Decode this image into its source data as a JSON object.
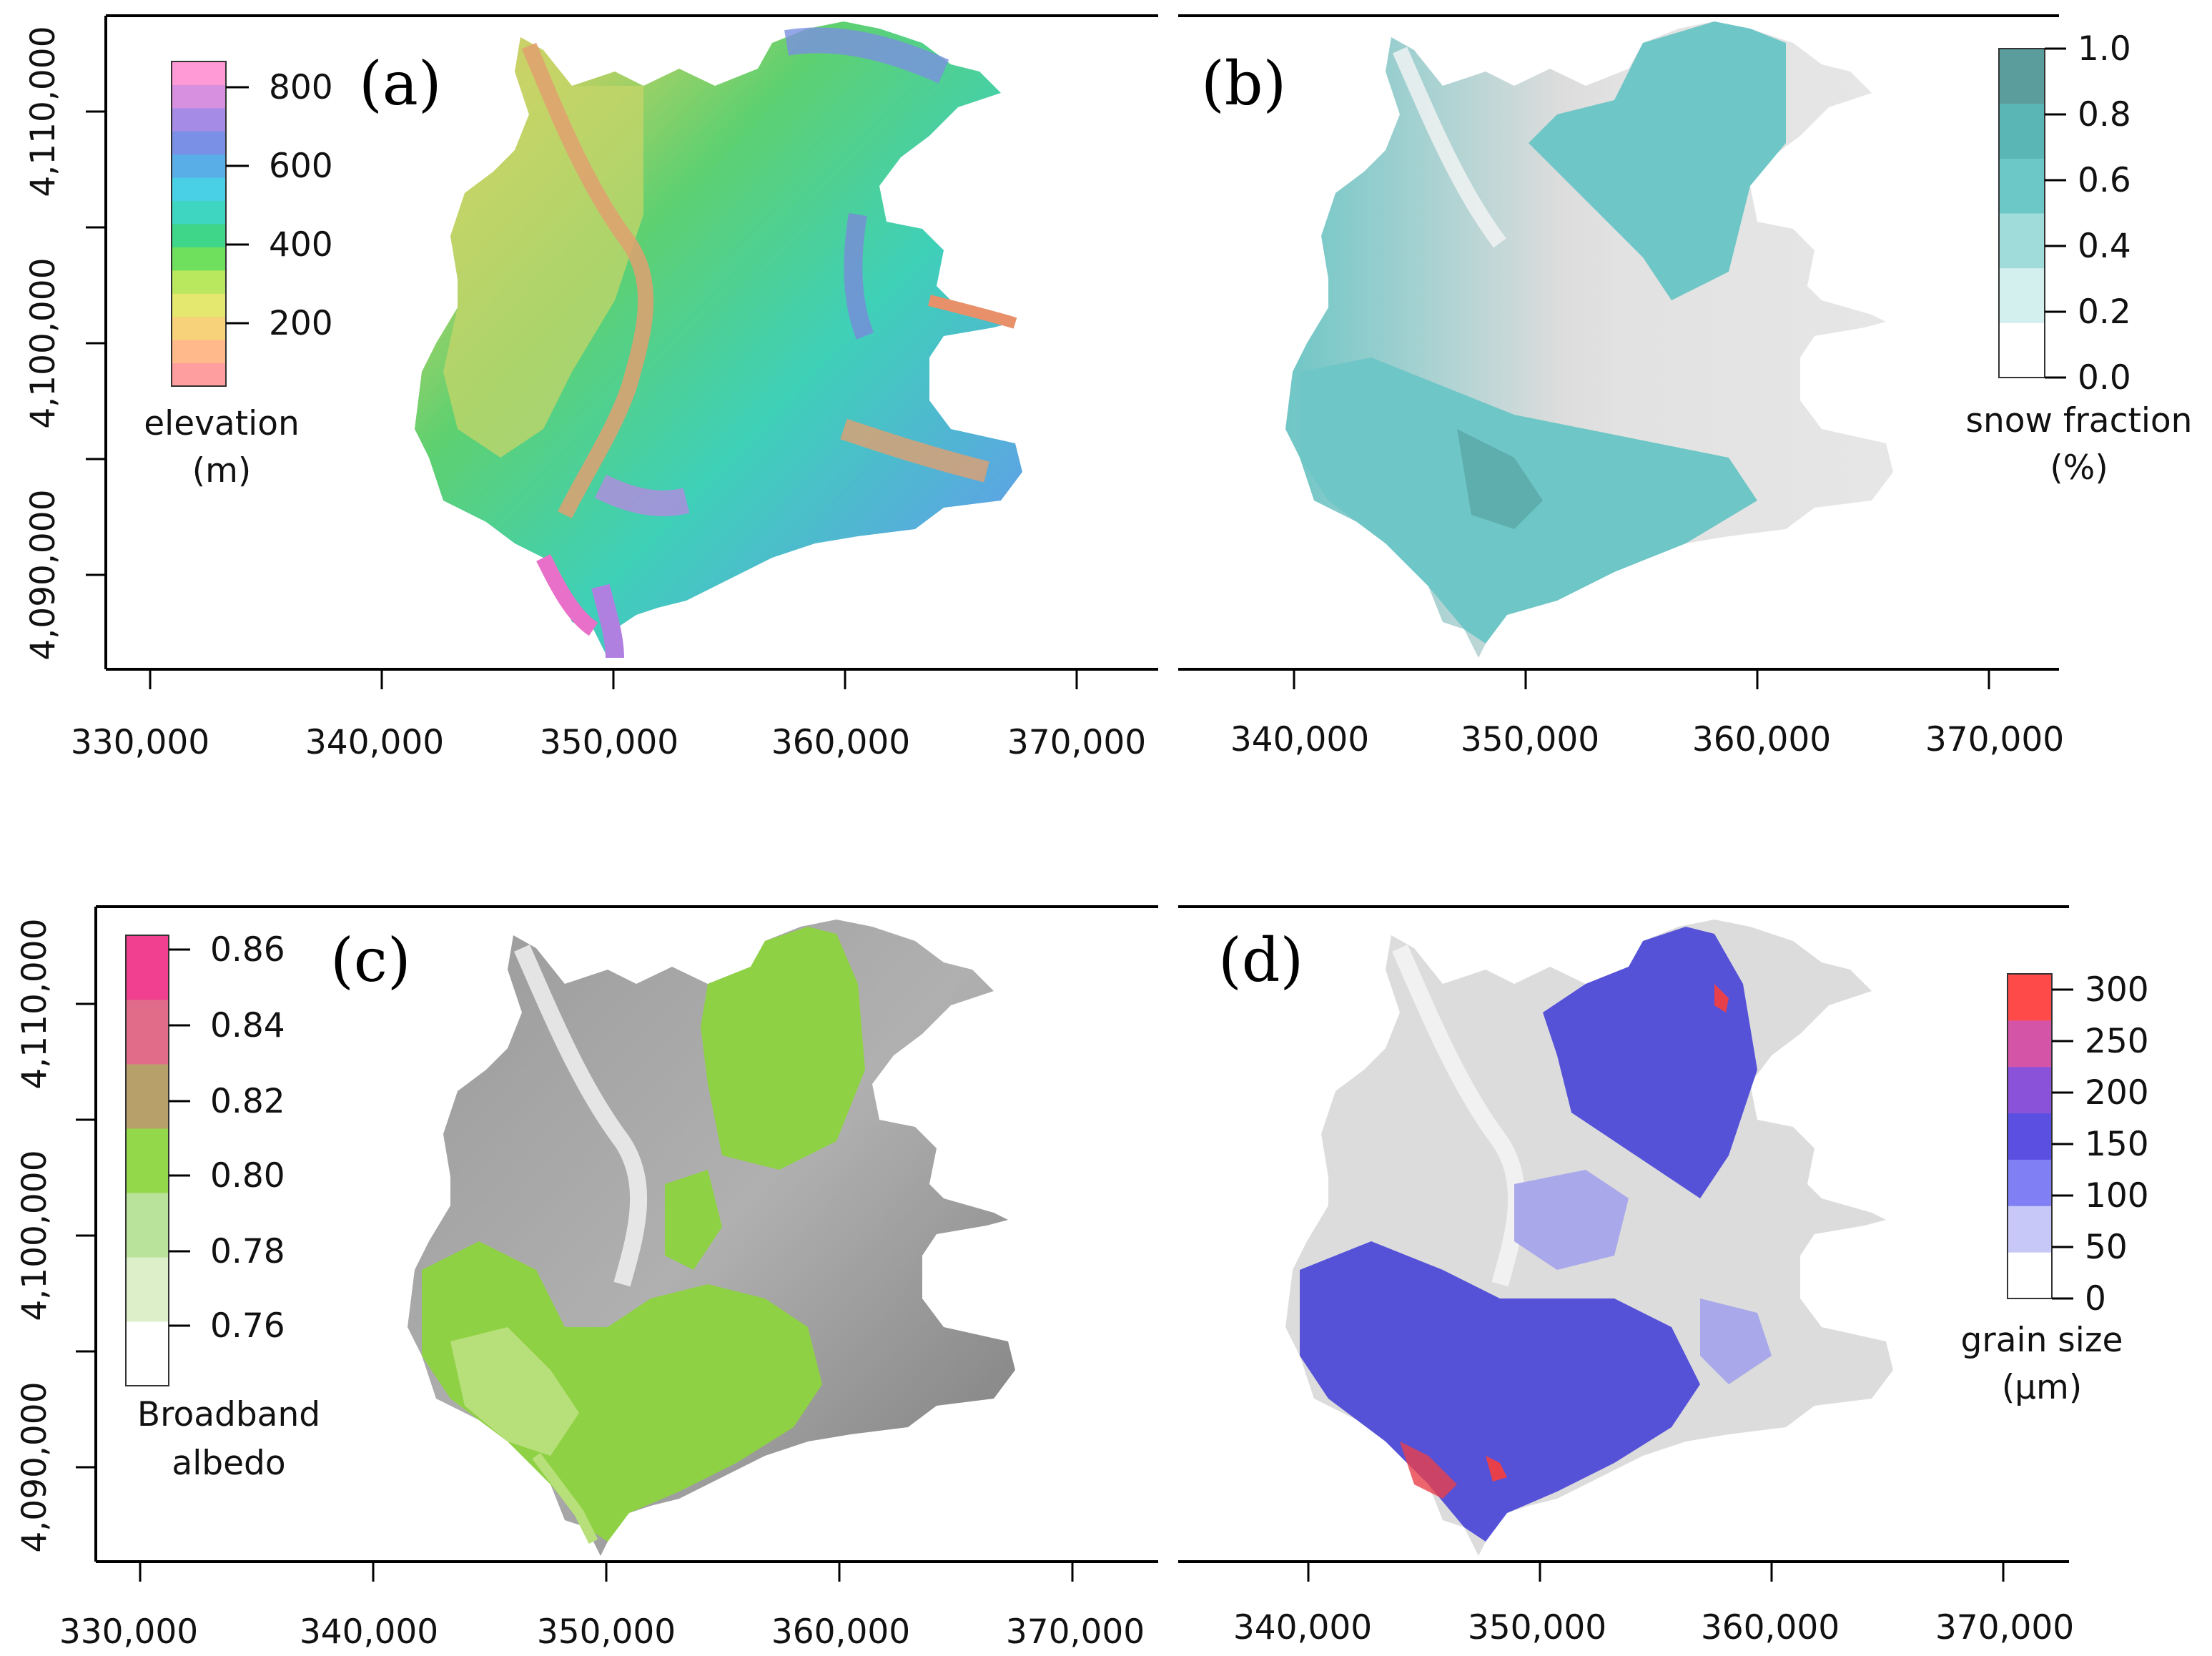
{
  "figure": {
    "panels": [
      {
        "id": "a",
        "label": "(a)",
        "legend": {
          "title_line1": "elevation",
          "title_line2": "(m)",
          "ticks": [
            "800",
            "600",
            "400",
            "200"
          ],
          "range": [
            100,
            900
          ],
          "colors": [
            "#ff9e9e",
            "#ffb98a",
            "#f7d27a",
            "#e4e86e",
            "#b9e85e",
            "#6fdf5e",
            "#3fd68a",
            "#3ed6c0",
            "#4ad0e6",
            "#5aaee8",
            "#7a8fe6",
            "#a58ae6",
            "#d78fe0",
            "#ff9ad6"
          ]
        },
        "x_ticks": [
          "330,000",
          "340,000",
          "350,000",
          "360,000",
          "370,000"
        ],
        "y_ticks": [
          "4,110,000",
          "4,100,000",
          "4,090,000"
        ]
      },
      {
        "id": "b",
        "label": "(b)",
        "legend": {
          "title_line1": "snow fraction",
          "title_line2": "(%)",
          "ticks": [
            "1.0",
            "0.8",
            "0.6",
            "0.4",
            "0.2",
            "0.0"
          ],
          "colors": [
            "#ffffff",
            "#d4f0ee",
            "#9fdcda",
            "#6cc8c6",
            "#59b6b4",
            "#5b9d9c"
          ]
        },
        "x_ticks": [
          "340,000",
          "350,000",
          "360,000",
          "370,000"
        ]
      },
      {
        "id": "c",
        "label": "(c)",
        "legend": {
          "title_line1": "Broadband",
          "title_line2": "albedo",
          "ticks": [
            "0.86",
            "0.84",
            "0.82",
            "0.80",
            "0.78",
            "0.76"
          ],
          "colors": [
            "#ffffff",
            "#dcefc9",
            "#b9e39a",
            "#93d84a",
            "#b7a06a",
            "#e06c8a",
            "#f0408f"
          ]
        },
        "x_ticks": [
          "330,000",
          "340,000",
          "350,000",
          "360,000",
          "370,000"
        ],
        "y_ticks": [
          "4,110,000",
          "4,100,000",
          "4,090,000"
        ]
      },
      {
        "id": "d",
        "label": "(d)",
        "legend": {
          "title_line1": "grain size",
          "title_line2": "(µm)",
          "ticks": [
            "300",
            "250",
            "200",
            "150",
            "100",
            "50",
            "0"
          ],
          "colors": [
            "#ffffff",
            "#c8c8f8",
            "#8080f4",
            "#5a4fe0",
            "#8a52d8",
            "#d455a8",
            "#ff4a4a"
          ]
        },
        "x_ticks": [
          "340,000",
          "350,000",
          "360,000",
          "370,000"
        ]
      }
    ],
    "map_colors": {
      "hillshade_light": "#e4e4e4",
      "hillshade_gray": "#8a8a8a",
      "snow_teal": "#6fc6c6",
      "albedo_green": "#8fd144",
      "albedo_light_green": "#b7e07a",
      "grain_blue": "#5552d8",
      "grain_light": "#a8a8ea",
      "grain_red": "#e8404a"
    }
  }
}
